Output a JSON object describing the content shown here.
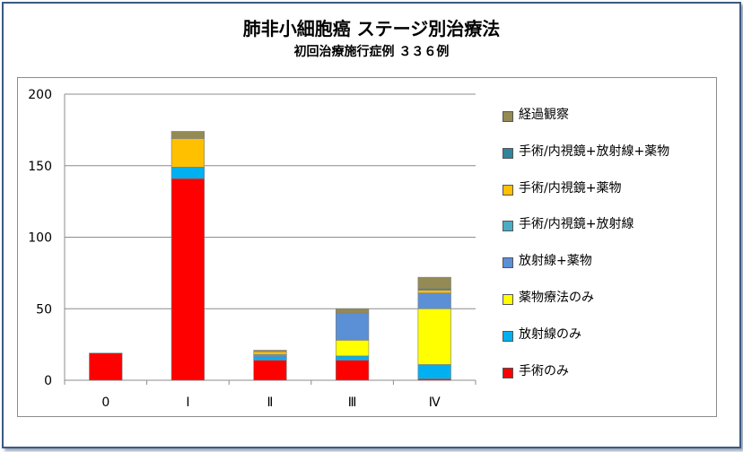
{
  "chart_data": {
    "type": "bar",
    "stacked": true,
    "title": "肺非小細胞癌 ステージ別治療法",
    "subtitle": "初回治療施行症例 ３３６例",
    "categories": [
      "0",
      "Ⅰ",
      "Ⅱ",
      "Ⅲ",
      "Ⅳ"
    ],
    "ylim": [
      0,
      200
    ],
    "yticks": [
      0,
      50,
      100,
      150,
      200
    ],
    "grid": true,
    "legend_position": "right",
    "series": [
      {
        "name": "手術のみ",
        "color": "#ff0000",
        "values": [
          19,
          141,
          14,
          14,
          1
        ]
      },
      {
        "name": "放射線のみ",
        "color": "#00b0f0",
        "values": [
          0,
          8,
          2,
          3,
          10
        ]
      },
      {
        "name": "薬物療法のみ",
        "color": "#ffff00",
        "values": [
          0,
          0,
          0,
          11,
          39
        ]
      },
      {
        "name": "放射線+薬物",
        "color": "#5b8fd6",
        "values": [
          0,
          0,
          1,
          19,
          11
        ]
      },
      {
        "name": "手術/内視鏡+放射線",
        "color": "#4bacc6",
        "values": [
          0,
          0,
          1,
          0,
          0
        ]
      },
      {
        "name": "手術/内視鏡+薬物",
        "color": "#ffc000",
        "values": [
          0,
          20,
          2,
          0,
          2
        ]
      },
      {
        "name": "手術/内視鏡+放射線+薬物",
        "color": "#31849b",
        "values": [
          0,
          0,
          0,
          0,
          1
        ]
      },
      {
        "name": "経過観察",
        "color": "#948a54",
        "values": [
          0,
          5,
          1,
          3,
          8
        ]
      }
    ]
  }
}
